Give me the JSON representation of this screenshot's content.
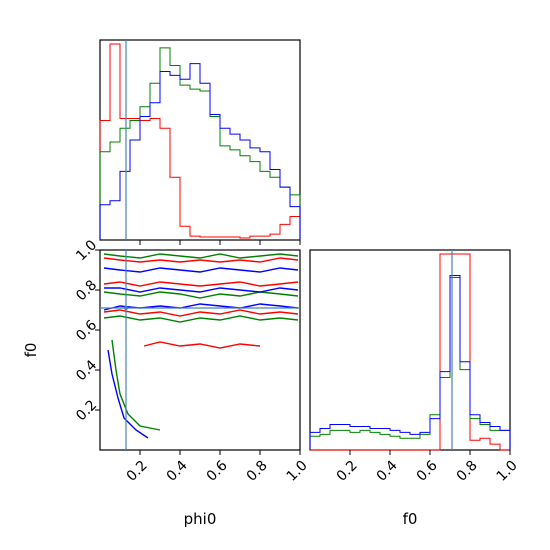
{
  "chart_data": {
    "type": "corner",
    "parameters": [
      "phi0",
      "f0"
    ],
    "truth": {
      "phi0": 0.13,
      "f0": 0.71
    },
    "colors": {
      "red": "#ff0000",
      "green": "#008000",
      "blue": "#0000ff",
      "truth": "#4682b4"
    },
    "series": [
      {
        "color": "red"
      },
      {
        "color": "green"
      },
      {
        "color": "blue"
      }
    ],
    "panels": [
      {
        "id": "hist-phi0",
        "type": "step-histogram",
        "x_param": "phi0",
        "xlim": [
          0,
          1
        ],
        "bin_edges": [
          0,
          0.05,
          0.1,
          0.15,
          0.2,
          0.25,
          0.3,
          0.35,
          0.4,
          0.45,
          0.5,
          0.55,
          0.6,
          0.65,
          0.7,
          0.75,
          0.8,
          0.85,
          0.9,
          0.95,
          1.0
        ],
        "series": [
          {
            "color": "red",
            "counts": [
              0.61,
              1.0,
              0.62,
              0.62,
              0.61,
              0.62,
              0.57,
              0.32,
              0.07,
              0.02,
              0.015,
              0.015,
              0.015,
              0.015,
              0.01,
              0.02,
              0.02,
              0.03,
              0.08,
              0.12
            ]
          },
          {
            "color": "green",
            "counts": [
              0.45,
              0.5,
              0.57,
              0.61,
              0.68,
              0.8,
              0.98,
              0.89,
              0.79,
              0.77,
              0.76,
              0.63,
              0.48,
              0.46,
              0.43,
              0.4,
              0.35,
              0.32,
              0.27,
              0.23
            ]
          },
          {
            "color": "blue",
            "counts": [
              0.18,
              0.2,
              0.35,
              0.51,
              0.63,
              0.7,
              0.86,
              0.84,
              0.82,
              0.9,
              0.8,
              0.64,
              0.57,
              0.54,
              0.51,
              0.47,
              0.45,
              0.36,
              0.27,
              0.17
            ]
          }
        ]
      },
      {
        "id": "hist-f0",
        "type": "step-histogram",
        "x_param": "f0",
        "xlim": [
          0,
          1
        ],
        "bin_edges": [
          0,
          0.05,
          0.1,
          0.15,
          0.2,
          0.25,
          0.3,
          0.35,
          0.4,
          0.45,
          0.5,
          0.55,
          0.6,
          0.65,
          0.7,
          0.75,
          0.8,
          0.85,
          0.9,
          0.95,
          1.0
        ],
        "series": [
          {
            "color": "red",
            "counts": [
              0.0,
              0.0,
              0.0,
              0.0,
              0.0,
              0.0,
              0.0,
              0.0,
              0.0,
              0.0,
              0.0,
              0.0,
              0.0,
              1.0,
              1.0,
              1.0,
              0.05,
              0.06,
              0.03,
              0.0
            ]
          },
          {
            "color": "green",
            "counts": [
              0.07,
              0.08,
              0.1,
              0.1,
              0.09,
              0.1,
              0.09,
              0.08,
              0.07,
              0.06,
              0.06,
              0.08,
              0.18,
              0.37,
              0.88,
              0.41,
              0.16,
              0.13,
              0.1,
              0.1
            ]
          },
          {
            "color": "blue",
            "counts": [
              0.09,
              0.11,
              0.13,
              0.13,
              0.12,
              0.12,
              0.11,
              0.11,
              0.1,
              0.09,
              0.08,
              0.09,
              0.16,
              0.4,
              0.89,
              0.45,
              0.18,
              0.14,
              0.12,
              0.1
            ]
          }
        ]
      },
      {
        "id": "contour-phi0-f0",
        "type": "contour",
        "x_param": "phi0",
        "y_param": "f0",
        "xlim": [
          0,
          1
        ],
        "ylim": [
          0,
          1
        ],
        "contours": [
          {
            "color": "red",
            "points": [
              [
                0.02,
                0.96
              ],
              [
                0.1,
                0.95
              ],
              [
                0.2,
                0.94
              ],
              [
                0.3,
                0.95
              ],
              [
                0.4,
                0.94
              ],
              [
                0.5,
                0.95
              ],
              [
                0.6,
                0.94
              ],
              [
                0.7,
                0.95
              ],
              [
                0.8,
                0.94
              ],
              [
                0.9,
                0.96
              ],
              [
                0.99,
                0.95
              ]
            ]
          },
          {
            "color": "red",
            "points": [
              [
                0.02,
                0.83
              ],
              [
                0.1,
                0.84
              ],
              [
                0.2,
                0.82
              ],
              [
                0.3,
                0.84
              ],
              [
                0.4,
                0.83
              ],
              [
                0.5,
                0.82
              ],
              [
                0.6,
                0.83
              ],
              [
                0.7,
                0.84
              ],
              [
                0.8,
                0.82
              ],
              [
                0.9,
                0.83
              ],
              [
                0.99,
                0.84
              ]
            ]
          },
          {
            "color": "red",
            "points": [
              [
                0.02,
                0.69
              ],
              [
                0.1,
                0.7
              ],
              [
                0.2,
                0.68
              ],
              [
                0.3,
                0.69
              ],
              [
                0.4,
                0.67
              ],
              [
                0.5,
                0.69
              ],
              [
                0.6,
                0.68
              ],
              [
                0.7,
                0.7
              ],
              [
                0.8,
                0.68
              ],
              [
                0.9,
                0.69
              ],
              [
                0.99,
                0.68
              ]
            ]
          },
          {
            "color": "red",
            "points": [
              [
                0.22,
                0.52
              ],
              [
                0.3,
                0.54
              ],
              [
                0.4,
                0.52
              ],
              [
                0.5,
                0.53
              ],
              [
                0.6,
                0.51
              ],
              [
                0.7,
                0.53
              ],
              [
                0.8,
                0.52
              ]
            ]
          },
          {
            "color": "green",
            "points": [
              [
                0.02,
                0.98
              ],
              [
                0.1,
                0.97
              ],
              [
                0.2,
                0.96
              ],
              [
                0.3,
                0.98
              ],
              [
                0.4,
                0.97
              ],
              [
                0.5,
                0.96
              ],
              [
                0.6,
                0.98
              ],
              [
                0.7,
                0.96
              ],
              [
                0.8,
                0.97
              ],
              [
                0.9,
                0.98
              ],
              [
                0.99,
                0.97
              ]
            ]
          },
          {
            "color": "green",
            "points": [
              [
                0.02,
                0.79
              ],
              [
                0.1,
                0.78
              ],
              [
                0.2,
                0.77
              ],
              [
                0.3,
                0.79
              ],
              [
                0.4,
                0.78
              ],
              [
                0.5,
                0.76
              ],
              [
                0.6,
                0.78
              ],
              [
                0.7,
                0.77
              ],
              [
                0.8,
                0.79
              ],
              [
                0.9,
                0.78
              ],
              [
                0.99,
                0.77
              ]
            ]
          },
          {
            "color": "green",
            "points": [
              [
                0.02,
                0.66
              ],
              [
                0.1,
                0.67
              ],
              [
                0.2,
                0.65
              ],
              [
                0.3,
                0.66
              ],
              [
                0.4,
                0.64
              ],
              [
                0.5,
                0.66
              ],
              [
                0.6,
                0.65
              ],
              [
                0.7,
                0.67
              ],
              [
                0.8,
                0.65
              ],
              [
                0.9,
                0.66
              ],
              [
                0.99,
                0.65
              ]
            ]
          },
          {
            "color": "green",
            "points": [
              [
                0.06,
                0.55
              ],
              [
                0.08,
                0.4
              ],
              [
                0.1,
                0.28
              ],
              [
                0.14,
                0.18
              ],
              [
                0.2,
                0.12
              ],
              [
                0.3,
                0.1
              ]
            ]
          },
          {
            "color": "blue",
            "points": [
              [
                0.02,
                0.91
              ],
              [
                0.1,
                0.9
              ],
              [
                0.2,
                0.89
              ],
              [
                0.3,
                0.91
              ],
              [
                0.4,
                0.9
              ],
              [
                0.5,
                0.89
              ],
              [
                0.6,
                0.91
              ],
              [
                0.7,
                0.9
              ],
              [
                0.8,
                0.89
              ],
              [
                0.9,
                0.91
              ],
              [
                0.99,
                0.9
              ]
            ]
          },
          {
            "color": "blue",
            "points": [
              [
                0.02,
                0.81
              ],
              [
                0.1,
                0.81
              ],
              [
                0.2,
                0.79
              ],
              [
                0.3,
                0.81
              ],
              [
                0.4,
                0.8
              ],
              [
                0.5,
                0.79
              ],
              [
                0.6,
                0.81
              ],
              [
                0.7,
                0.8
              ],
              [
                0.8,
                0.79
              ],
              [
                0.9,
                0.81
              ],
              [
                0.99,
                0.8
              ]
            ]
          },
          {
            "color": "blue",
            "points": [
              [
                0.02,
                0.7
              ],
              [
                0.1,
                0.72
              ],
              [
                0.2,
                0.71
              ],
              [
                0.3,
                0.72
              ],
              [
                0.4,
                0.71
              ],
              [
                0.5,
                0.73
              ],
              [
                0.6,
                0.72
              ],
              [
                0.7,
                0.71
              ],
              [
                0.8,
                0.73
              ],
              [
                0.9,
                0.72
              ],
              [
                0.99,
                0.71
              ]
            ]
          },
          {
            "color": "blue",
            "points": [
              [
                0.04,
                0.5
              ],
              [
                0.06,
                0.38
              ],
              [
                0.09,
                0.26
              ],
              [
                0.12,
                0.16
              ],
              [
                0.18,
                0.1
              ],
              [
                0.24,
                0.06
              ]
            ]
          }
        ]
      }
    ],
    "axes": {
      "phi0": {
        "label": "phi0",
        "ticks": [
          0.2,
          0.4,
          0.6,
          0.8,
          1.0
        ],
        "tick_labels": [
          "0.2",
          "0.4",
          "0.6",
          "0.8",
          "1.0"
        ]
      },
      "f0": {
        "label": "f0",
        "ticks": [
          0.2,
          0.4,
          0.6,
          0.8,
          1.0
        ],
        "tick_labels": [
          "0.2",
          "0.4",
          "0.6",
          "0.8",
          "1.0"
        ]
      }
    }
  }
}
